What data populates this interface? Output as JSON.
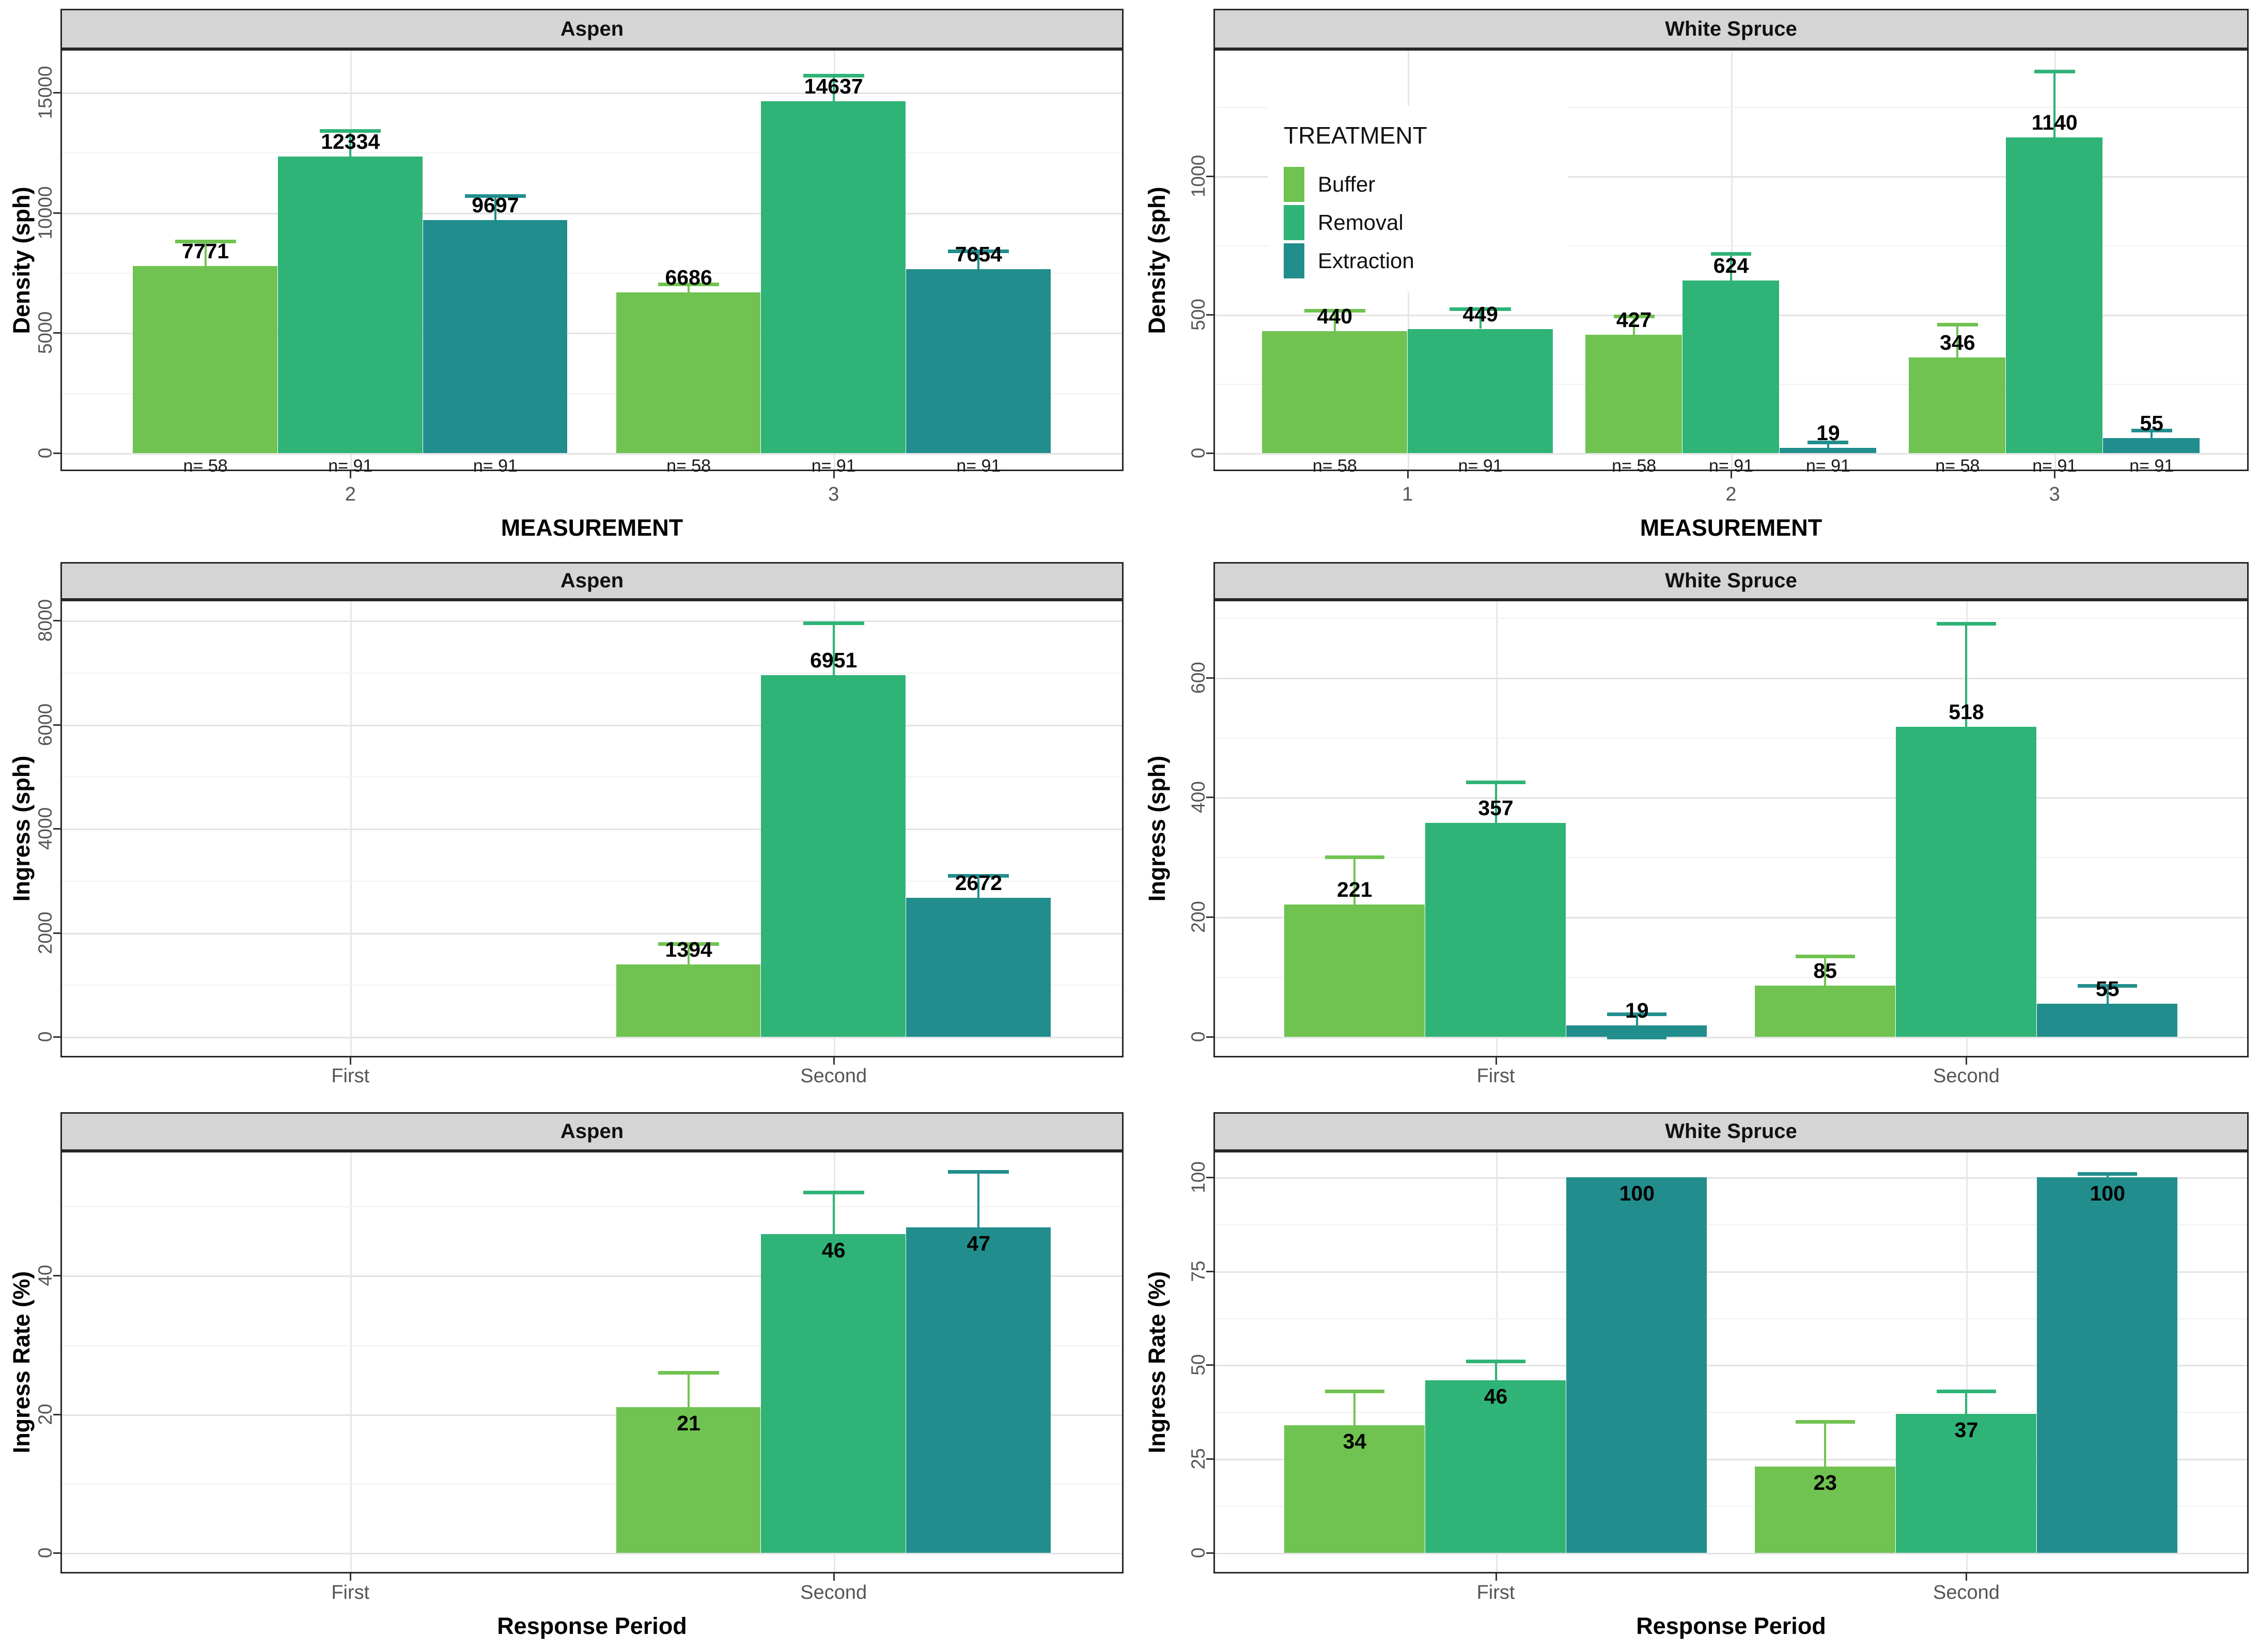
{
  "figure": {
    "background": "#ffffff"
  },
  "legend": {
    "title": "TREATMENT",
    "items": [
      {
        "label": "Buffer",
        "color": "#70C351"
      },
      {
        "label": "Removal",
        "color": "#2FB377"
      },
      {
        "label": "Extraction",
        "color": "#218E8D"
      }
    ]
  },
  "axes": {
    "row1_x_title": "MEASUREMENT",
    "row3_x_title": "Response Period",
    "row1_y_title": "Density (sph)",
    "row2_y_title": "Ingress (sph)",
    "row3_y_title": "Ingress Rate (%)"
  },
  "chart_data": [
    {
      "id": "aspen-density",
      "type": "bar",
      "facet": "Aspen",
      "row": 1,
      "col": "left",
      "ylabel": "Density (sph)",
      "xlabel": "MEASUREMENT",
      "ylim": [
        0,
        16800
      ],
      "yticks": [
        0,
        5000,
        10000,
        15000
      ],
      "yminor": [
        2500,
        7500,
        12500
      ],
      "value_labels": "above",
      "x_categories": [
        "2",
        "3"
      ],
      "groups": [
        {
          "x": "2",
          "bars": [
            {
              "treatment": "Buffer",
              "value": 7771,
              "err_hi": 8800,
              "n": "n= 58"
            },
            {
              "treatment": "Removal",
              "value": 12334,
              "err_hi": 13400,
              "n": "n= 91"
            },
            {
              "treatment": "Extraction",
              "value": 9697,
              "err_hi": 10700,
              "n": "n= 91"
            }
          ]
        },
        {
          "x": "3",
          "bars": [
            {
              "treatment": "Buffer",
              "value": 6686,
              "err_hi": 7030,
              "n": "n= 58"
            },
            {
              "treatment": "Removal",
              "value": 14637,
              "err_hi": 15700,
              "n": "n= 91"
            },
            {
              "treatment": "Extraction",
              "value": 7654,
              "err_hi": 8400,
              "n": "n= 91"
            }
          ]
        }
      ]
    },
    {
      "id": "spruce-density",
      "type": "bar",
      "facet": "White Spruce",
      "row": 1,
      "col": "right",
      "ylabel": "Density (sph)",
      "xlabel": "MEASUREMENT",
      "ylim": [
        0,
        1460
      ],
      "yticks": [
        0,
        500,
        1000
      ],
      "yminor": [
        250,
        750,
        1250
      ],
      "value_labels": "above",
      "has_legend": true,
      "x_categories": [
        "1",
        "2",
        "3"
      ],
      "groups": [
        {
          "x": "1",
          "bars": [
            {
              "treatment": "Buffer",
              "value": 440,
              "err_hi": 515,
              "n": "n= 58"
            },
            {
              "treatment": "Removal",
              "value": 449,
              "err_hi": 520,
              "n": "n= 91"
            }
          ]
        },
        {
          "x": "2",
          "bars": [
            {
              "treatment": "Buffer",
              "value": 427,
              "err_hi": 495,
              "n": "n= 58"
            },
            {
              "treatment": "Removal",
              "value": 624,
              "err_hi": 720,
              "n": "n= 91"
            },
            {
              "treatment": "Extraction",
              "value": 19,
              "err_hi": 40,
              "n": "n= 91"
            }
          ]
        },
        {
          "x": "3",
          "bars": [
            {
              "treatment": "Buffer",
              "value": 346,
              "err_hi": 465,
              "n": "n= 58"
            },
            {
              "treatment": "Removal",
              "value": 1140,
              "err_hi": 1380,
              "n": "n= 91"
            },
            {
              "treatment": "Extraction",
              "value": 55,
              "err_hi": 82,
              "n": "n= 91"
            }
          ]
        }
      ]
    },
    {
      "id": "aspen-ingress",
      "type": "bar",
      "facet": "Aspen",
      "row": 2,
      "col": "left",
      "ylabel": "Ingress (sph)",
      "xlabel": "",
      "ylim": [
        0,
        8400
      ],
      "yticks": [
        0,
        2000,
        4000,
        6000,
        8000
      ],
      "yminor": [
        1000,
        3000,
        5000,
        7000
      ],
      "value_labels": "above",
      "x_categories": [
        "First",
        "Second"
      ],
      "groups": [
        {
          "x": "First",
          "bars": []
        },
        {
          "x": "Second",
          "bars": [
            {
              "treatment": "Buffer",
              "value": 1394,
              "err_hi": 1790
            },
            {
              "treatment": "Removal",
              "value": 6951,
              "err_hi": 7950
            },
            {
              "treatment": "Extraction",
              "value": 2672,
              "err_hi": 3100
            }
          ]
        }
      ]
    },
    {
      "id": "spruce-ingress",
      "type": "bar",
      "facet": "White Spruce",
      "row": 2,
      "col": "right",
      "ylabel": "Ingress (sph)",
      "xlabel": "",
      "ylim": [
        0,
        730
      ],
      "yticks": [
        0,
        200,
        400,
        600
      ],
      "yminor": [
        100,
        300,
        500,
        700
      ],
      "value_labels": "above",
      "x_categories": [
        "First",
        "Second"
      ],
      "groups": [
        {
          "x": "First",
          "bars": [
            {
              "treatment": "Buffer",
              "value": 221,
              "err_hi": 300
            },
            {
              "treatment": "Removal",
              "value": 357,
              "err_hi": 425
            },
            {
              "treatment": "Extraction",
              "value": 19,
              "err_hi": 38,
              "err_lo": -1
            }
          ]
        },
        {
          "x": "Second",
          "bars": [
            {
              "treatment": "Buffer",
              "value": 85,
              "err_hi": 135
            },
            {
              "treatment": "Removal",
              "value": 518,
              "err_hi": 690
            },
            {
              "treatment": "Extraction",
              "value": 55,
              "err_hi": 85
            }
          ]
        }
      ]
    },
    {
      "id": "aspen-rate",
      "type": "bar",
      "facet": "Aspen",
      "row": 3,
      "col": "left",
      "ylabel": "Ingress Rate (%)",
      "xlabel": "Response Period",
      "ylim": [
        0,
        58
      ],
      "yticks": [
        0,
        20,
        40
      ],
      "yminor": [
        10,
        30,
        50
      ],
      "value_labels": "inside",
      "x_categories": [
        "First",
        "Second"
      ],
      "groups": [
        {
          "x": "First",
          "bars": []
        },
        {
          "x": "Second",
          "bars": [
            {
              "treatment": "Buffer",
              "value": 21,
              "err_hi": 26
            },
            {
              "treatment": "Removal",
              "value": 46,
              "err_hi": 52
            },
            {
              "treatment": "Extraction",
              "value": 47,
              "err_hi": 55
            }
          ]
        }
      ]
    },
    {
      "id": "spruce-rate",
      "type": "bar",
      "facet": "White Spruce",
      "row": 3,
      "col": "right",
      "ylabel": "Ingress Rate (%)",
      "xlabel": "Response Period",
      "ylim": [
        0,
        107
      ],
      "yticks": [
        0,
        25,
        50,
        75,
        100
      ],
      "yminor": [
        12.5,
        37.5,
        62.5,
        87.5
      ],
      "value_labels": "inside",
      "x_categories": [
        "First",
        "Second"
      ],
      "groups": [
        {
          "x": "First",
          "bars": [
            {
              "treatment": "Buffer",
              "value": 34,
              "err_hi": 43
            },
            {
              "treatment": "Removal",
              "value": 46,
              "err_hi": 51
            },
            {
              "treatment": "Extraction",
              "value": 100
            }
          ]
        },
        {
          "x": "Second",
          "bars": [
            {
              "treatment": "Buffer",
              "value": 23,
              "err_hi": 35
            },
            {
              "treatment": "Removal",
              "value": 37,
              "err_hi": 43
            },
            {
              "treatment": "Extraction",
              "value": 100,
              "err_hi": 101
            }
          ]
        }
      ]
    }
  ]
}
